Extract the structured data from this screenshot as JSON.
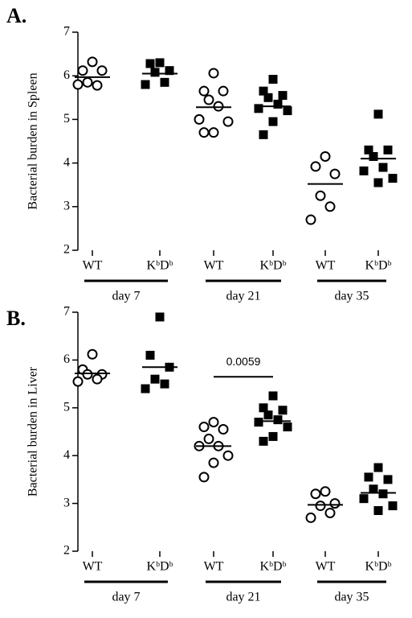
{
  "chart_data": [
    {
      "type": "dot",
      "panel": "A.",
      "ylabel": "Bacterial burden in Spleen",
      "categories": [
        "WT",
        "KᵇDᵇ",
        "WT",
        "KᵇDᵇ",
        "WT",
        "KᵇDᵇ"
      ],
      "markers": [
        "circle",
        "square",
        "circle",
        "square",
        "circle",
        "square"
      ],
      "group_labels": [
        "day 7",
        "day 21",
        "day 35"
      ],
      "values": [
        [
          6.32,
          6.12,
          6.12,
          5.85,
          5.78,
          5.8
        ],
        [
          6.3,
          6.28,
          6.12,
          6.08,
          5.85,
          5.8
        ],
        [
          6.06,
          5.65,
          5.65,
          5.45,
          5.3,
          5.0,
          4.95,
          4.7,
          4.7
        ],
        [
          5.92,
          5.65,
          5.55,
          5.5,
          5.35,
          5.25,
          5.2,
          4.95,
          4.65
        ],
        [
          4.15,
          3.92,
          3.75,
          3.25,
          3.0,
          2.7
        ],
        [
          5.12,
          4.3,
          4.3,
          4.15,
          3.9,
          3.82,
          3.65,
          3.55
        ]
      ],
      "means": [
        5.97,
        6.05,
        5.28,
        5.3,
        3.52,
        4.1
      ],
      "ylim": [
        2,
        7
      ],
      "yticks": [
        2,
        3,
        4,
        5,
        6,
        7
      ]
    },
    {
      "type": "dot",
      "panel": "B.",
      "ylabel": "Bacterial burden in Liver",
      "categories": [
        "WT",
        "KᵇDᵇ",
        "WT",
        "KᵇDᵇ",
        "WT",
        "KᵇDᵇ"
      ],
      "markers": [
        "circle",
        "square",
        "circle",
        "square",
        "circle",
        "square"
      ],
      "group_labels": [
        "day 7",
        "day 21",
        "day 35"
      ],
      "values": [
        [
          6.12,
          5.8,
          5.7,
          5.7,
          5.6,
          5.55
        ],
        [
          6.9,
          6.1,
          5.85,
          5.6,
          5.5,
          5.4
        ],
        [
          4.7,
          4.6,
          4.55,
          4.35,
          4.2,
          4.2,
          4.0,
          3.85,
          3.55
        ],
        [
          5.25,
          5.0,
          4.95,
          4.85,
          4.75,
          4.7,
          4.6,
          4.4,
          4.3
        ],
        [
          3.25,
          3.2,
          3.0,
          2.95,
          2.8,
          2.7
        ],
        [
          3.75,
          3.55,
          3.5,
          3.3,
          3.2,
          3.1,
          2.95,
          2.85
        ]
      ],
      "means": [
        5.72,
        5.85,
        4.2,
        4.72,
        2.97,
        3.22
      ],
      "annotation": {
        "text": "0.0059",
        "y": 5.65,
        "group": "day 21"
      },
      "ylim": [
        2,
        7
      ],
      "yticks": [
        2,
        3,
        4,
        5,
        6,
        7
      ]
    }
  ]
}
